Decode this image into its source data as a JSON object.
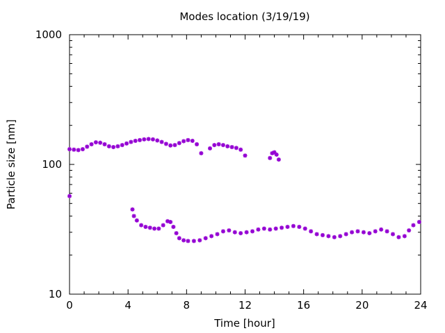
{
  "chart_data": {
    "type": "scatter",
    "title": "Modes location (3/19/19)",
    "xlabel": "Time [hour]",
    "ylabel": "Particle size [nm]",
    "xlim": [
      0,
      24
    ],
    "ylim": [
      10,
      1000
    ],
    "yscale": "log",
    "xticks": [
      0,
      4,
      8,
      12,
      16,
      20,
      24
    ],
    "xtick_labels": [
      "0",
      "4",
      "8",
      "12",
      "16",
      "20",
      "24"
    ],
    "yticks": [
      10,
      100,
      1000
    ],
    "ytick_labels": [
      "10",
      "100",
      "1000"
    ],
    "grid": false,
    "legend": "none",
    "marker_color": "#9400d3",
    "series": [
      {
        "points": [
          [
            0.0,
            131
          ],
          [
            0.3,
            130
          ],
          [
            0.6,
            129
          ],
          [
            0.9,
            131
          ],
          [
            1.2,
            137
          ],
          [
            1.5,
            143
          ],
          [
            1.8,
            148
          ],
          [
            2.1,
            147
          ],
          [
            2.4,
            143
          ],
          [
            2.7,
            138
          ],
          [
            3.0,
            136
          ],
          [
            3.3,
            138
          ],
          [
            3.6,
            141
          ],
          [
            3.9,
            145
          ],
          [
            4.2,
            149
          ],
          [
            4.5,
            152
          ],
          [
            4.8,
            154
          ],
          [
            5.1,
            156
          ],
          [
            5.4,
            157
          ],
          [
            5.7,
            156
          ],
          [
            6.0,
            153
          ],
          [
            6.3,
            149
          ],
          [
            6.6,
            144
          ],
          [
            6.9,
            140
          ],
          [
            7.2,
            141
          ],
          [
            7.5,
            146
          ],
          [
            7.8,
            151
          ],
          [
            8.1,
            154
          ],
          [
            8.4,
            152
          ],
          [
            8.7,
            143
          ],
          [
            9.0,
            122
          ],
          [
            9.6,
            133
          ],
          [
            9.9,
            141
          ],
          [
            10.2,
            143
          ],
          [
            10.5,
            141
          ],
          [
            10.8,
            138
          ],
          [
            11.1,
            136
          ],
          [
            11.4,
            134
          ],
          [
            11.7,
            130
          ],
          [
            12.0,
            117
          ],
          [
            13.7,
            112
          ],
          [
            13.85,
            122
          ],
          [
            14.0,
            124
          ],
          [
            14.15,
            119
          ],
          [
            14.3,
            109
          ]
        ]
      },
      {
        "points": [
          [
            0.0,
            57
          ],
          [
            4.3,
            45
          ],
          [
            4.4,
            40
          ],
          [
            4.6,
            37
          ],
          [
            4.9,
            34
          ],
          [
            5.2,
            33
          ],
          [
            5.5,
            32.5
          ],
          [
            5.8,
            32
          ],
          [
            6.1,
            32
          ],
          [
            6.4,
            34
          ],
          [
            6.7,
            36.5
          ],
          [
            6.9,
            36
          ],
          [
            7.1,
            33
          ],
          [
            7.3,
            29.5
          ],
          [
            7.5,
            27
          ],
          [
            7.8,
            26
          ],
          [
            8.1,
            25.7
          ],
          [
            8.5,
            25.7
          ],
          [
            8.9,
            26
          ],
          [
            9.3,
            27
          ],
          [
            9.7,
            28
          ],
          [
            10.1,
            29
          ],
          [
            10.5,
            30.5
          ],
          [
            10.9,
            31
          ],
          [
            11.3,
            30
          ],
          [
            11.7,
            29.5
          ],
          [
            12.1,
            30
          ],
          [
            12.5,
            30.5
          ],
          [
            12.9,
            31.5
          ],
          [
            13.3,
            32
          ],
          [
            13.7,
            31.5
          ],
          [
            14.1,
            32
          ],
          [
            14.5,
            32.5
          ],
          [
            14.9,
            33
          ],
          [
            15.3,
            33.5
          ],
          [
            15.7,
            33
          ],
          [
            16.1,
            32
          ],
          [
            16.5,
            30.5
          ],
          [
            16.9,
            29
          ],
          [
            17.3,
            28.5
          ],
          [
            17.7,
            28
          ],
          [
            18.1,
            27.5
          ],
          [
            18.5,
            28
          ],
          [
            18.9,
            29
          ],
          [
            19.3,
            30
          ],
          [
            19.7,
            30.5
          ],
          [
            20.1,
            30
          ],
          [
            20.5,
            29.5
          ],
          [
            20.9,
            30.5
          ],
          [
            21.3,
            31.5
          ],
          [
            21.7,
            30.5
          ],
          [
            22.1,
            29
          ],
          [
            22.5,
            27.5
          ],
          [
            22.9,
            28
          ],
          [
            23.2,
            31
          ],
          [
            23.5,
            34
          ],
          [
            23.9,
            36
          ]
        ]
      }
    ]
  }
}
